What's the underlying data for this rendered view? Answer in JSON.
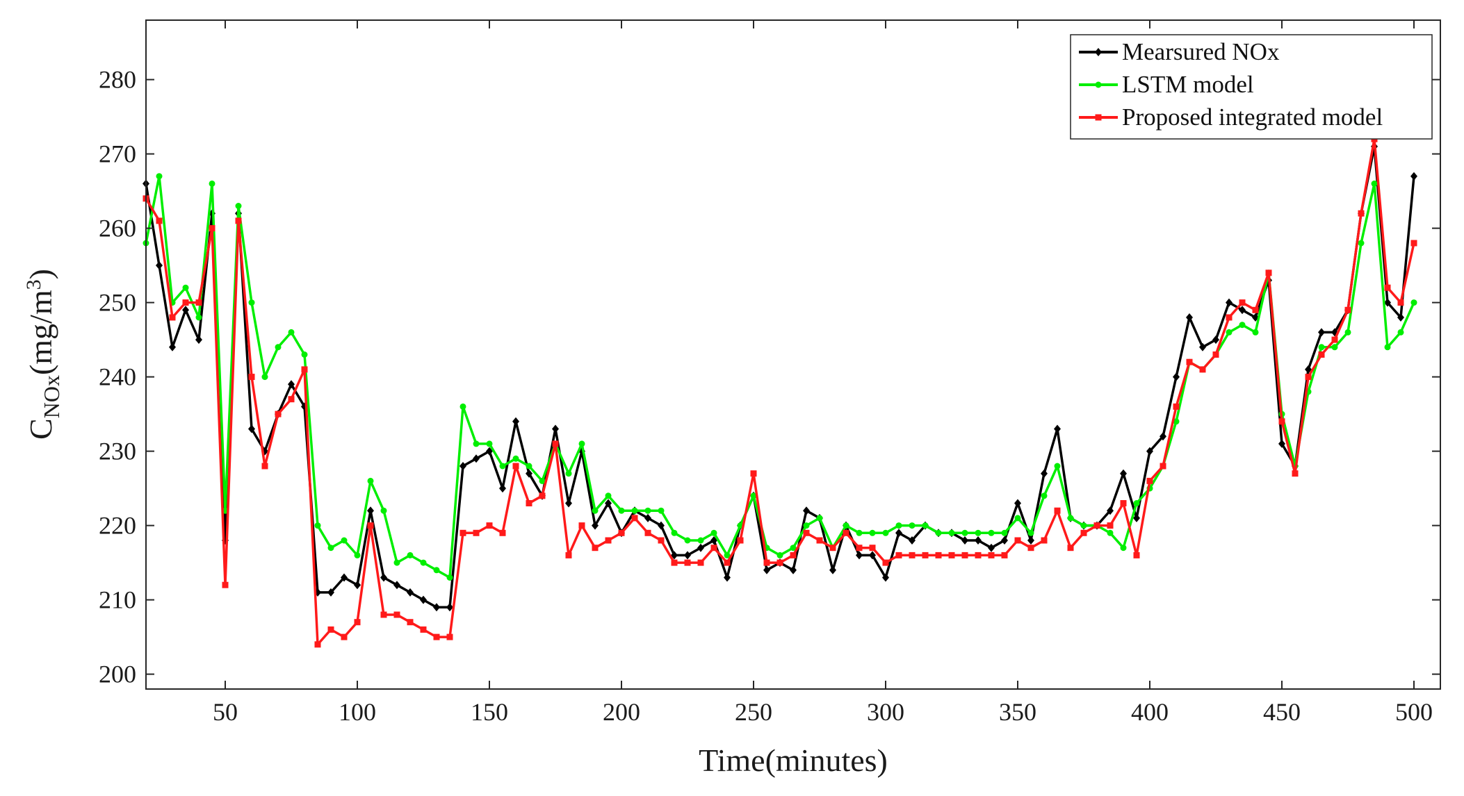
{
  "chart_data": {
    "type": "line",
    "xlabel": "Time(minutes)",
    "ylabel": {
      "main": "C",
      "subscript": "NOx",
      "unit_prefix": "(mg/m",
      "unit_power": "3",
      "unit_suffix": ")"
    },
    "xlim": [
      20,
      510
    ],
    "ylim": [
      198,
      288
    ],
    "x_ticks": [
      50,
      100,
      150,
      200,
      250,
      300,
      350,
      400,
      450,
      500
    ],
    "y_ticks": [
      200,
      210,
      220,
      230,
      240,
      250,
      260,
      270,
      280
    ],
    "grid": false,
    "legend_position": "top-right",
    "x": [
      20,
      25,
      30,
      35,
      40,
      45,
      50,
      55,
      60,
      65,
      70,
      75,
      80,
      85,
      90,
      95,
      100,
      105,
      110,
      115,
      120,
      125,
      130,
      135,
      140,
      145,
      150,
      155,
      160,
      165,
      170,
      175,
      180,
      185,
      190,
      195,
      200,
      205,
      210,
      215,
      220,
      225,
      230,
      235,
      240,
      245,
      250,
      255,
      260,
      265,
      270,
      275,
      280,
      285,
      290,
      295,
      300,
      305,
      310,
      315,
      320,
      325,
      330,
      335,
      340,
      345,
      350,
      355,
      360,
      365,
      370,
      375,
      380,
      385,
      390,
      395,
      400,
      405,
      410,
      415,
      420,
      425,
      430,
      435,
      440,
      445,
      450,
      455,
      460,
      465,
      470,
      475,
      480,
      485,
      490,
      495,
      500
    ],
    "series": [
      {
        "name": "Mearsured NOx",
        "color": "#000000",
        "marker": "diamond",
        "values": [
          266,
          255,
          244,
          249,
          245,
          262,
          218,
          262,
          233,
          230,
          235,
          239,
          236,
          211,
          211,
          213,
          212,
          222,
          213,
          212,
          211,
          210,
          209,
          209,
          228,
          229,
          230,
          225,
          234,
          227,
          224,
          233,
          223,
          230,
          220,
          223,
          219,
          222,
          221,
          220,
          216,
          216,
          217,
          218,
          213,
          220,
          224,
          214,
          215,
          214,
          222,
          221,
          214,
          220,
          216,
          216,
          213,
          219,
          218,
          220,
          219,
          219,
          218,
          218,
          217,
          218,
          223,
          218,
          227,
          233,
          221,
          220,
          220,
          222,
          227,
          221,
          230,
          232,
          240,
          248,
          244,
          245,
          250,
          249,
          248,
          253,
          231,
          228,
          241,
          246,
          246,
          249,
          262,
          271,
          250,
          248,
          267
        ]
      },
      {
        "name": "LSTM model",
        "color": "#00ee00",
        "marker": "circle",
        "values": [
          258,
          267,
          250,
          252,
          248,
          266,
          222,
          263,
          250,
          240,
          244,
          246,
          243,
          220,
          217,
          218,
          216,
          226,
          222,
          215,
          216,
          215,
          214,
          213,
          236,
          231,
          231,
          228,
          229,
          228,
          226,
          231,
          227,
          231,
          222,
          224,
          222,
          222,
          222,
          222,
          219,
          218,
          218,
          219,
          216,
          220,
          224,
          217,
          216,
          217,
          220,
          221,
          217,
          220,
          219,
          219,
          219,
          220,
          220,
          220,
          219,
          219,
          219,
          219,
          219,
          219,
          221,
          219,
          224,
          228,
          221,
          220,
          220,
          219,
          217,
          223,
          225,
          228,
          234,
          242,
          241,
          243,
          246,
          247,
          246,
          254,
          235,
          228,
          238,
          244,
          244,
          246,
          258,
          266,
          244,
          246,
          250
        ]
      },
      {
        "name": "Proposed integrated model",
        "color": "#ff1a1a",
        "marker": "square",
        "values": [
          264,
          261,
          248,
          250,
          250,
          260,
          212,
          261,
          240,
          228,
          235,
          237,
          241,
          204,
          206,
          205,
          207,
          220,
          208,
          208,
          207,
          206,
          205,
          205,
          219,
          219,
          220,
          219,
          228,
          223,
          224,
          231,
          216,
          220,
          217,
          218,
          219,
          221,
          219,
          218,
          215,
          215,
          215,
          217,
          215,
          218,
          227,
          215,
          215,
          216,
          219,
          218,
          217,
          219,
          217,
          217,
          215,
          216,
          216,
          216,
          216,
          216,
          216,
          216,
          216,
          216,
          218,
          217,
          218,
          222,
          217,
          219,
          220,
          220,
          223,
          216,
          226,
          228,
          236,
          242,
          241,
          243,
          248,
          250,
          249,
          254,
          234,
          227,
          240,
          243,
          245,
          249,
          262,
          272,
          252,
          250,
          258
        ]
      }
    ]
  }
}
